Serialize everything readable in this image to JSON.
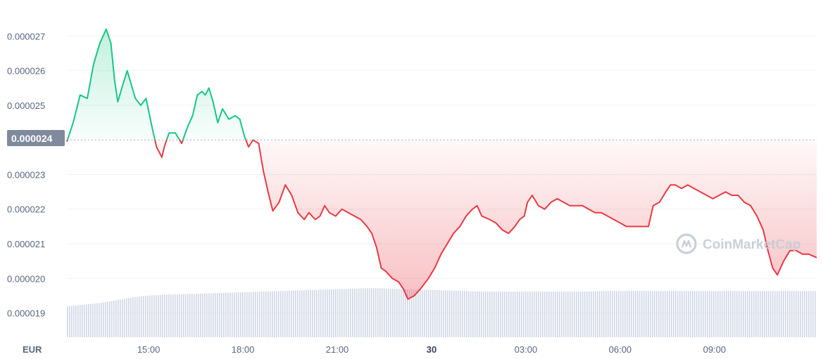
{
  "chart_data": {
    "type": "line",
    "unit": "EUR",
    "reference_value": 2.4e-05,
    "reference_label": "0.000024",
    "ylim": [
      1.83e-05,
      2.78e-05
    ],
    "y_ticks": [
      {
        "value": 2.7e-05,
        "label": "0.000027"
      },
      {
        "value": 2.6e-05,
        "label": "0.000026"
      },
      {
        "value": 2.5e-05,
        "label": "0.000025"
      },
      {
        "value": 2.3e-05,
        "label": "0.000023"
      },
      {
        "value": 2.2e-05,
        "label": "0.000022"
      },
      {
        "value": 2.1e-05,
        "label": "0.000021"
      },
      {
        "value": 2e-05,
        "label": "0.000020"
      },
      {
        "value": 1.9e-05,
        "label": "0.000019"
      }
    ],
    "x_range_hours": [
      12.4,
      36.25
    ],
    "x_ticks": [
      {
        "hour": 15,
        "label": "15:00",
        "bold": false
      },
      {
        "hour": 18,
        "label": "18:00",
        "bold": false
      },
      {
        "hour": 21,
        "label": "21:00",
        "bold": false
      },
      {
        "hour": 24,
        "label": "30",
        "bold": true
      },
      {
        "hour": 27,
        "label": "03:00",
        "bold": false
      },
      {
        "hour": 30,
        "label": "06:00",
        "bold": false
      },
      {
        "hour": 33,
        "label": "09:00",
        "bold": false
      }
    ],
    "series": [
      {
        "x_hours": [
          12.4,
          12.6,
          12.82,
          13.05,
          13.25,
          13.45,
          13.65,
          13.8,
          13.92,
          14.02,
          14.18,
          14.32,
          14.45,
          14.58,
          14.75,
          14.92,
          15.1,
          15.25,
          15.42,
          15.5,
          15.65,
          15.85,
          16.05,
          16.25,
          16.4,
          16.55,
          16.7,
          16.8,
          16.92,
          17.05,
          17.2,
          17.35,
          17.55,
          17.75,
          17.9,
          18.05,
          18.18,
          18.32,
          18.5,
          18.65,
          18.8,
          18.95,
          19.15,
          19.35,
          19.55,
          19.75,
          19.95,
          20.1,
          20.3,
          20.45,
          20.6,
          20.75,
          20.95,
          21.15,
          21.35,
          21.55,
          21.75,
          21.95,
          22.1,
          22.25,
          22.4,
          22.55,
          22.75,
          22.95,
          23.1,
          23.25,
          23.45,
          23.65,
          23.9,
          24.1,
          24.3,
          24.5,
          24.7,
          24.9,
          25.1,
          25.3,
          25.45,
          25.6,
          25.85,
          26.05,
          26.25,
          26.45,
          26.65,
          26.8,
          26.95,
          27.05,
          27.2,
          27.4,
          27.6,
          27.8,
          28.0,
          28.2,
          28.4,
          28.6,
          28.8,
          29.0,
          29.2,
          29.4,
          29.6,
          29.8,
          30.0,
          30.2,
          30.4,
          30.6,
          30.75,
          30.9,
          31.05,
          31.25,
          31.45,
          31.6,
          31.75,
          31.95,
          32.15,
          32.35,
          32.55,
          32.75,
          32.95,
          33.15,
          33.35,
          33.55,
          33.75,
          33.95,
          34.15,
          34.35,
          34.55,
          34.7,
          34.85,
          35.0,
          35.2,
          35.4,
          35.6,
          35.8,
          36.0,
          36.25
        ],
        "values": [
          2.395e-05,
          2.45e-05,
          2.53e-05,
          2.52e-05,
          2.62e-05,
          2.68e-05,
          2.72e-05,
          2.68e-05,
          2.57e-05,
          2.51e-05,
          2.56e-05,
          2.6e-05,
          2.56e-05,
          2.52e-05,
          2.5e-05,
          2.52e-05,
          2.44e-05,
          2.38e-05,
          2.35e-05,
          2.38e-05,
          2.42e-05,
          2.42e-05,
          2.39e-05,
          2.44e-05,
          2.47e-05,
          2.53e-05,
          2.54e-05,
          2.53e-05,
          2.55e-05,
          2.51e-05,
          2.45e-05,
          2.49e-05,
          2.46e-05,
          2.47e-05,
          2.46e-05,
          2.41e-05,
          2.38e-05,
          2.4e-05,
          2.39e-05,
          2.31e-05,
          2.25e-05,
          2.195e-05,
          2.22e-05,
          2.27e-05,
          2.24e-05,
          2.19e-05,
          2.17e-05,
          2.19e-05,
          2.17e-05,
          2.18e-05,
          2.21e-05,
          2.19e-05,
          2.18e-05,
          2.2e-05,
          2.19e-05,
          2.18e-05,
          2.17e-05,
          2.15e-05,
          2.13e-05,
          2.09e-05,
          2.03e-05,
          2.02e-05,
          2e-05,
          1.99e-05,
          1.97e-05,
          1.94e-05,
          1.95e-05,
          1.97e-05,
          2e-05,
          2.03e-05,
          2.07e-05,
          2.1e-05,
          2.13e-05,
          2.15e-05,
          2.18e-05,
          2.2e-05,
          2.21e-05,
          2.18e-05,
          2.17e-05,
          2.16e-05,
          2.14e-05,
          2.13e-05,
          2.15e-05,
          2.17e-05,
          2.18e-05,
          2.22e-05,
          2.24e-05,
          2.21e-05,
          2.2e-05,
          2.22e-05,
          2.23e-05,
          2.22e-05,
          2.21e-05,
          2.21e-05,
          2.21e-05,
          2.2e-05,
          2.19e-05,
          2.19e-05,
          2.18e-05,
          2.17e-05,
          2.16e-05,
          2.15e-05,
          2.15e-05,
          2.15e-05,
          2.15e-05,
          2.15e-05,
          2.21e-05,
          2.22e-05,
          2.25e-05,
          2.27e-05,
          2.27e-05,
          2.26e-05,
          2.27e-05,
          2.26e-05,
          2.25e-05,
          2.24e-05,
          2.23e-05,
          2.24e-05,
          2.25e-05,
          2.24e-05,
          2.24e-05,
          2.22e-05,
          2.21e-05,
          2.18e-05,
          2.14e-05,
          2.08e-05,
          2.03e-05,
          2.01e-05,
          2.05e-05,
          2.08e-05,
          2.08e-05,
          2.07e-05,
          2.07e-05,
          2.06e-05
        ]
      }
    ],
    "volume": {
      "values_relative": [
        0.63,
        0.66,
        0.69,
        0.74,
        0.8,
        0.84,
        0.86,
        0.87,
        0.88,
        0.89,
        0.9,
        0.91,
        0.92,
        0.93,
        0.94,
        0.95,
        0.96,
        0.97,
        0.98,
        0.99,
        1.0,
        0.99,
        0.98,
        0.97,
        0.96,
        0.95,
        0.94,
        0.93,
        0.93,
        0.93,
        0.93,
        0.93,
        0.93,
        0.93,
        0.93,
        0.94,
        0.94,
        0.94,
        0.94,
        0.94,
        0.94,
        0.94,
        0.94,
        0.94,
        0.94,
        0.94,
        0.94,
        0.94,
        0.94,
        0.94
      ],
      "color": "#cfd6e4"
    },
    "colors": {
      "above_line": "#16c784",
      "below_line": "#ea3943",
      "above_fill": "#16c784",
      "below_fill": "#ea3943",
      "reference_label_bg": "#808a9d",
      "grid": "#eff2f5"
    }
  },
  "watermark": {
    "text": "CoinMarketCap",
    "icon": "coinmarketcap-logo-icon"
  }
}
